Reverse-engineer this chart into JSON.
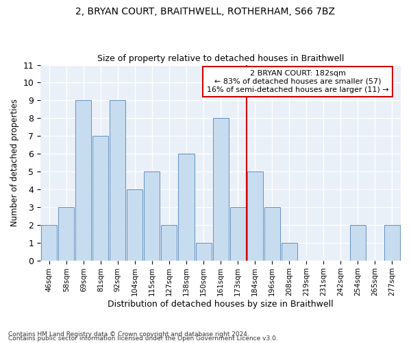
{
  "title": "2, BRYAN COURT, BRAITHWELL, ROTHERHAM, S66 7BZ",
  "subtitle": "Size of property relative to detached houses in Braithwell",
  "xlabel": "Distribution of detached houses by size in Braithwell",
  "ylabel": "Number of detached properties",
  "categories": [
    "46sqm",
    "58sqm",
    "69sqm",
    "81sqm",
    "92sqm",
    "104sqm",
    "115sqm",
    "127sqm",
    "138sqm",
    "150sqm",
    "161sqm",
    "173sqm",
    "184sqm",
    "196sqm",
    "208sqm",
    "219sqm",
    "231sqm",
    "242sqm",
    "254sqm",
    "265sqm",
    "277sqm"
  ],
  "values": [
    2,
    3,
    9,
    7,
    9,
    4,
    5,
    2,
    6,
    1,
    8,
    3,
    5,
    3,
    1,
    0,
    0,
    0,
    2,
    0,
    2
  ],
  "bar_color": "#c8dcf0",
  "bar_edge_color": "#6090c0",
  "annotation_title": "2 BRYAN COURT: 182sqm",
  "annotation_line1": "← 83% of detached houses are smaller (57)",
  "annotation_line2": "16% of semi-detached houses are larger (11) →",
  "annotation_box_color": "#cc0000",
  "ylim": [
    0,
    11
  ],
  "yticks": [
    0,
    1,
    2,
    3,
    4,
    5,
    6,
    7,
    8,
    9,
    10,
    11
  ],
  "footer1": "Contains HM Land Registry data © Crown copyright and database right 2024.",
  "footer2": "Contains public sector information licensed under the Open Government Licence v3.0.",
  "bg_color": "#eaf0f8"
}
